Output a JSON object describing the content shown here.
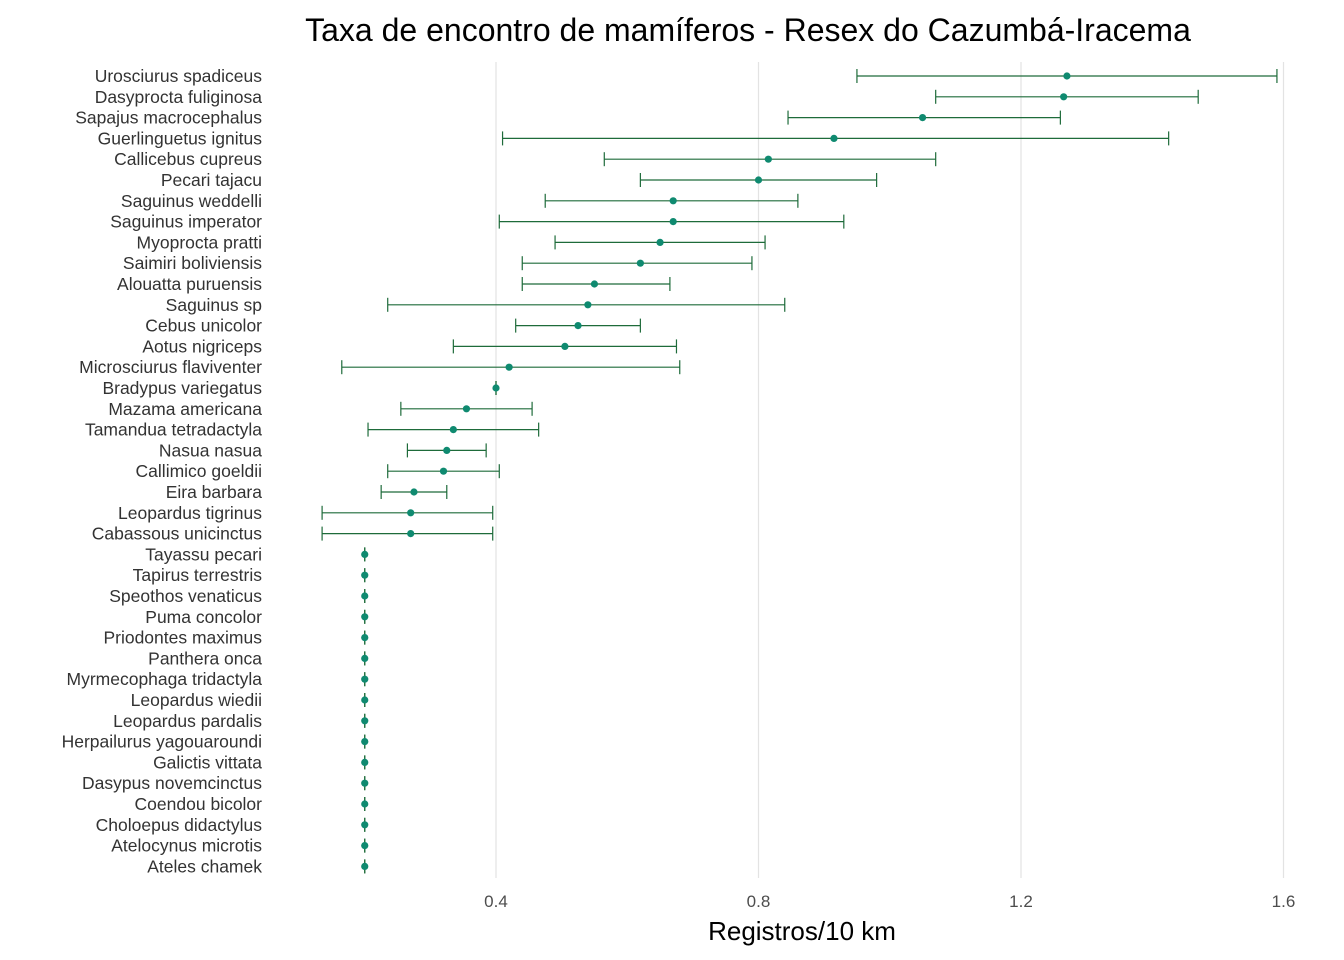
{
  "chart_data": {
    "type": "scatter",
    "title": "Taxa de encontro de mamíferos - Resex do Cazumbá-Iracema",
    "xlabel": "Registros/10 km",
    "ylabel": "",
    "xlim": [
      0.0,
      1.63
    ],
    "xticks": [
      0.4,
      0.8,
      1.2,
      1.6
    ],
    "xtick_labels": [
      "0.4",
      "0.8",
      "1.2",
      "1.6"
    ],
    "grid": "vertical major gridlines",
    "point_color": "#0f8a70",
    "errorbar_color": "#1e6b3a",
    "series": [
      {
        "values": [
          {
            "species": "Urosciurus spadiceus",
            "x": 1.27,
            "low": 0.95,
            "high": 1.59
          },
          {
            "species": "Dasyprocta fuliginosa",
            "x": 1.265,
            "low": 1.07,
            "high": 1.47
          },
          {
            "species": "Sapajus macrocephalus",
            "x": 1.05,
            "low": 0.845,
            "high": 1.26
          },
          {
            "species": "Guerlinguetus ignitus",
            "x": 0.915,
            "low": 0.41,
            "high": 1.425
          },
          {
            "species": "Callicebus cupreus",
            "x": 0.815,
            "low": 0.565,
            "high": 1.07
          },
          {
            "species": "Pecari tajacu",
            "x": 0.8,
            "low": 0.62,
            "high": 0.98
          },
          {
            "species": "Saguinus weddelli",
            "x": 0.67,
            "low": 0.475,
            "high": 0.86
          },
          {
            "species": "Saguinus imperator",
            "x": 0.67,
            "low": 0.405,
            "high": 0.93
          },
          {
            "species": "Myoprocta pratti",
            "x": 0.65,
            "low": 0.49,
            "high": 0.81
          },
          {
            "species": "Saimiri boliviensis",
            "x": 0.62,
            "low": 0.44,
            "high": 0.79
          },
          {
            "species": "Alouatta puruensis",
            "x": 0.55,
            "low": 0.44,
            "high": 0.665
          },
          {
            "species": "Saguinus sp",
            "x": 0.54,
            "low": 0.235,
            "high": 0.84
          },
          {
            "species": "Cebus unicolor",
            "x": 0.525,
            "low": 0.43,
            "high": 0.62
          },
          {
            "species": "Aotus nigriceps",
            "x": 0.505,
            "low": 0.335,
            "high": 0.675
          },
          {
            "species": "Microsciurus flaviventer",
            "x": 0.42,
            "low": 0.165,
            "high": 0.68
          },
          {
            "species": "Bradypus variegatus",
            "x": 0.4,
            "low": 0.4,
            "high": 0.4
          },
          {
            "species": "Mazama americana",
            "x": 0.355,
            "low": 0.255,
            "high": 0.455
          },
          {
            "species": "Tamandua tetradactyla",
            "x": 0.335,
            "low": 0.205,
            "high": 0.465
          },
          {
            "species": "Nasua nasua",
            "x": 0.325,
            "low": 0.265,
            "high": 0.385
          },
          {
            "species": "Callimico goeldii",
            "x": 0.32,
            "low": 0.235,
            "high": 0.405
          },
          {
            "species": "Eira barbara",
            "x": 0.275,
            "low": 0.225,
            "high": 0.325
          },
          {
            "species": "Leopardus tigrinus",
            "x": 0.27,
            "low": 0.135,
            "high": 0.395
          },
          {
            "species": "Cabassous unicinctus",
            "x": 0.27,
            "low": 0.135,
            "high": 0.395
          },
          {
            "species": "Tayassu pecari",
            "x": 0.2,
            "low": 0.2,
            "high": 0.2
          },
          {
            "species": "Tapirus terrestris",
            "x": 0.2,
            "low": 0.2,
            "high": 0.2
          },
          {
            "species": "Speothos venaticus",
            "x": 0.2,
            "low": 0.2,
            "high": 0.2
          },
          {
            "species": "Puma concolor",
            "x": 0.2,
            "low": 0.2,
            "high": 0.2
          },
          {
            "species": "Priodontes maximus",
            "x": 0.2,
            "low": 0.2,
            "high": 0.2
          },
          {
            "species": "Panthera onca",
            "x": 0.2,
            "low": 0.2,
            "high": 0.2
          },
          {
            "species": "Myrmecophaga tridactyla",
            "x": 0.2,
            "low": 0.2,
            "high": 0.2
          },
          {
            "species": "Leopardus wiedii",
            "x": 0.2,
            "low": 0.2,
            "high": 0.2
          },
          {
            "species": "Leopardus pardalis",
            "x": 0.2,
            "low": 0.2,
            "high": 0.2
          },
          {
            "species": "Herpailurus yagouaroundi",
            "x": 0.2,
            "low": 0.2,
            "high": 0.2
          },
          {
            "species": "Galictis vittata",
            "x": 0.2,
            "low": 0.2,
            "high": 0.2
          },
          {
            "species": "Dasypus novemcinctus",
            "x": 0.2,
            "low": 0.2,
            "high": 0.2
          },
          {
            "species": "Coendou bicolor",
            "x": 0.2,
            "low": 0.2,
            "high": 0.2
          },
          {
            "species": "Choloepus didactylus",
            "x": 0.2,
            "low": 0.2,
            "high": 0.2
          },
          {
            "species": "Atelocynus microtis",
            "x": 0.2,
            "low": 0.2,
            "high": 0.2
          },
          {
            "species": "Ateles chamek",
            "x": 0.2,
            "low": 0.2,
            "high": 0.2
          }
        ]
      }
    ]
  }
}
